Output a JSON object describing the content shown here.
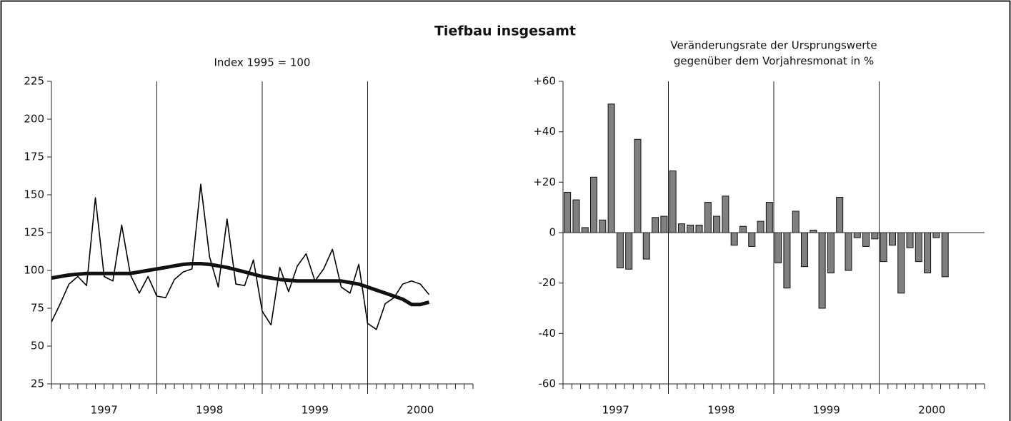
{
  "title": "Tiefbau insgesamt",
  "chart_data": [
    {
      "type": "line",
      "title": "Index 1995 = 100",
      "categories": [
        null,
        null,
        null,
        null,
        null,
        null,
        null,
        null,
        null,
        null,
        null,
        null,
        null,
        null,
        null,
        null,
        null,
        null,
        null,
        null,
        null,
        null,
        null,
        null,
        null,
        null,
        null,
        null,
        null,
        null,
        null,
        null,
        null,
        null,
        null,
        null,
        null,
        null,
        null,
        null,
        null,
        null,
        null,
        null,
        null,
        null,
        null,
        null
      ],
      "groups": [
        "1997",
        "1998",
        "1999",
        "2000"
      ],
      "series": [
        {
          "color": "#000000",
          "values": [
            66,
            78,
            91,
            96,
            90,
            148,
            96,
            93,
            130,
            97,
            85,
            96,
            83,
            82,
            94,
            99,
            101,
            157,
            109,
            89,
            134,
            91,
            90,
            107,
            73,
            64,
            102,
            86,
            103,
            111,
            93,
            101,
            114,
            89,
            85,
            104,
            65,
            61,
            78,
            82,
            91,
            93,
            91,
            84,
            null,
            null,
            null,
            null
          ]
        },
        {
          "color": "#111111",
          "values": [
            95,
            96,
            97,
            97.5,
            98,
            98,
            98,
            98,
            98,
            98,
            99,
            100,
            101,
            102,
            103,
            104,
            104.5,
            104.5,
            104,
            103,
            102,
            100.5,
            99,
            97.5,
            96,
            95,
            94,
            93.5,
            93,
            93,
            93,
            93,
            93,
            93,
            92,
            91,
            89,
            87,
            85,
            83,
            81,
            77.5,
            77.5,
            79,
            null,
            null,
            null,
            null
          ]
        }
      ],
      "ylim": [
        25,
        225
      ],
      "yticks": [
        25,
        50,
        75,
        100,
        125,
        150,
        175,
        200,
        225
      ]
    },
    {
      "type": "bar",
      "title": [
        "Veränderungsrate der Ursprungswerte",
        "gegenüber dem Vorjahresmonat in %"
      ],
      "categories": [
        null,
        null,
        null,
        null,
        null,
        null,
        null,
        null,
        null,
        null,
        null,
        null,
        null,
        null,
        null,
        null,
        null,
        null,
        null,
        null,
        null,
        null,
        null,
        null,
        null,
        null,
        null,
        null,
        null,
        null,
        null,
        null,
        null,
        null,
        null,
        null,
        null,
        null,
        null,
        null,
        null,
        null,
        null,
        null,
        null,
        null,
        null,
        null
      ],
      "groups": [
        "1997",
        "1998",
        "1999",
        "2000"
      ],
      "color": "#808080",
      "values": [
        16,
        13,
        2,
        22,
        5,
        51,
        -14,
        -14.5,
        37,
        -10.5,
        6,
        6.5,
        24.5,
        3.5,
        3,
        3,
        12,
        6.5,
        14.5,
        -5,
        2.5,
        -5.5,
        4.5,
        12,
        -12,
        -22,
        8.5,
        -13.5,
        1,
        -30,
        -16,
        14,
        -15,
        -2,
        -5.5,
        -2.5,
        -11.5,
        -5,
        -24,
        -6,
        -11.5,
        -16,
        -2,
        -17.5,
        null,
        null,
        null,
        null
      ],
      "ylim": [
        -60,
        60
      ],
      "yticks": [
        -60,
        -40,
        -20,
        0,
        {
          "value": 20,
          "label": "+20"
        },
        {
          "value": 40,
          "label": "+40"
        },
        {
          "value": 60,
          "label": "+60"
        }
      ]
    }
  ]
}
